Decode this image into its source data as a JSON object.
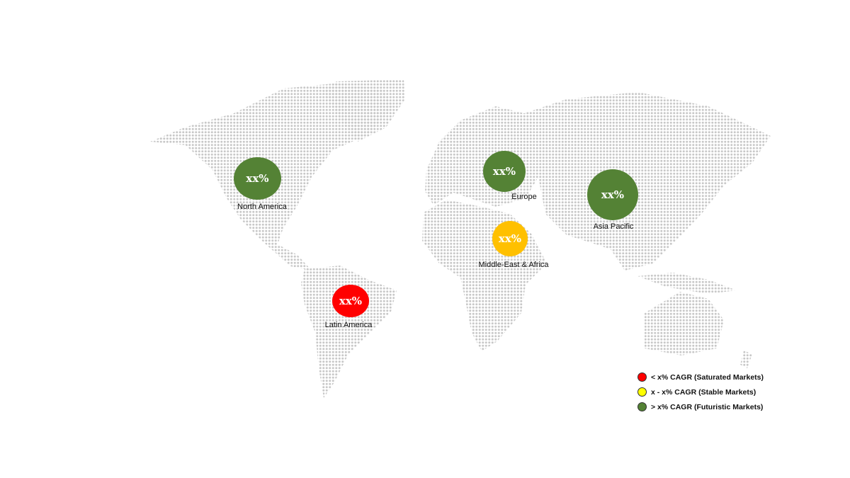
{
  "regions": [
    {
      "name": "North America",
      "value": "xx%",
      "color": "#548235",
      "status": "futuristic"
    },
    {
      "name": "Europe",
      "value": "xx%",
      "color": "#548235",
      "status": "futuristic"
    },
    {
      "name": "Asia Pacific",
      "value": "xx%",
      "color": "#548235",
      "status": "futuristic"
    },
    {
      "name": "Middle-East & Africa",
      "value": "xx%",
      "color": "#ffc000",
      "status": "stable"
    },
    {
      "name": "Latin America",
      "value": "xx%",
      "color": "#ff0000",
      "status": "saturated"
    }
  ],
  "legend": [
    {
      "label": "< x% CAGR (Saturated Markets)",
      "color": "#ff0000"
    },
    {
      "label": "x - x% CAGR (Stable Markets)",
      "color": "#ffff00"
    },
    {
      "label": "> x% CAGR (Futuristic Markets)",
      "color": "#548235"
    }
  ],
  "map_dot_color": "#c8c8c8"
}
